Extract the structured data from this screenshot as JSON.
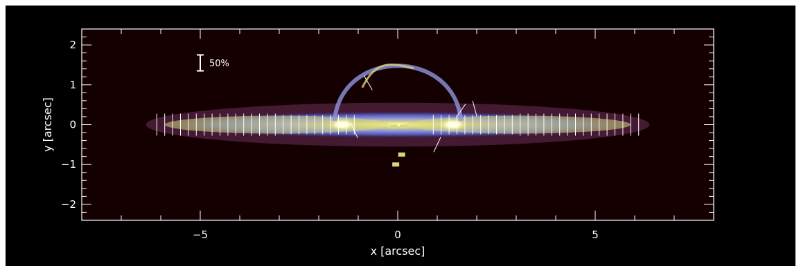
{
  "chart_data": {
    "type": "heatmap",
    "title": "",
    "xlabel": "x [arcsec]",
    "ylabel": "y [arcsec]",
    "xlim": [
      -8,
      8
    ],
    "ylim": [
      -2.4,
      2.4
    ],
    "x_ticks": [
      -5,
      0,
      5
    ],
    "x_tick_labels": [
      "−5",
      "0",
      "5"
    ],
    "y_ticks": [
      -2,
      -1,
      0,
      1,
      2
    ],
    "y_tick_labels": [
      "−2",
      "−1",
      "0",
      "1",
      "2"
    ],
    "scale_bar": {
      "label": "50%",
      "value_percent": 50
    },
    "background_color": "#000000",
    "plot_background_color": "#140000",
    "colormap": [
      "#3a0a1e",
      "#6b2f5c",
      "#4b4fa8",
      "#8f94e0",
      "#d6d67a",
      "#ffffcc"
    ],
    "vector_color": "#ffffff",
    "components": [
      {
        "name": "edge-on disk",
        "x_range": [
          -6.2,
          6.2
        ],
        "y_center": 0,
        "half_thickness": 0.25
      },
      {
        "name": "central arc",
        "x_range": [
          -1.6,
          1.6
        ],
        "y_peak": 1.45
      }
    ],
    "bright_peaks_x": [
      -1.4,
      1.4
    ]
  }
}
